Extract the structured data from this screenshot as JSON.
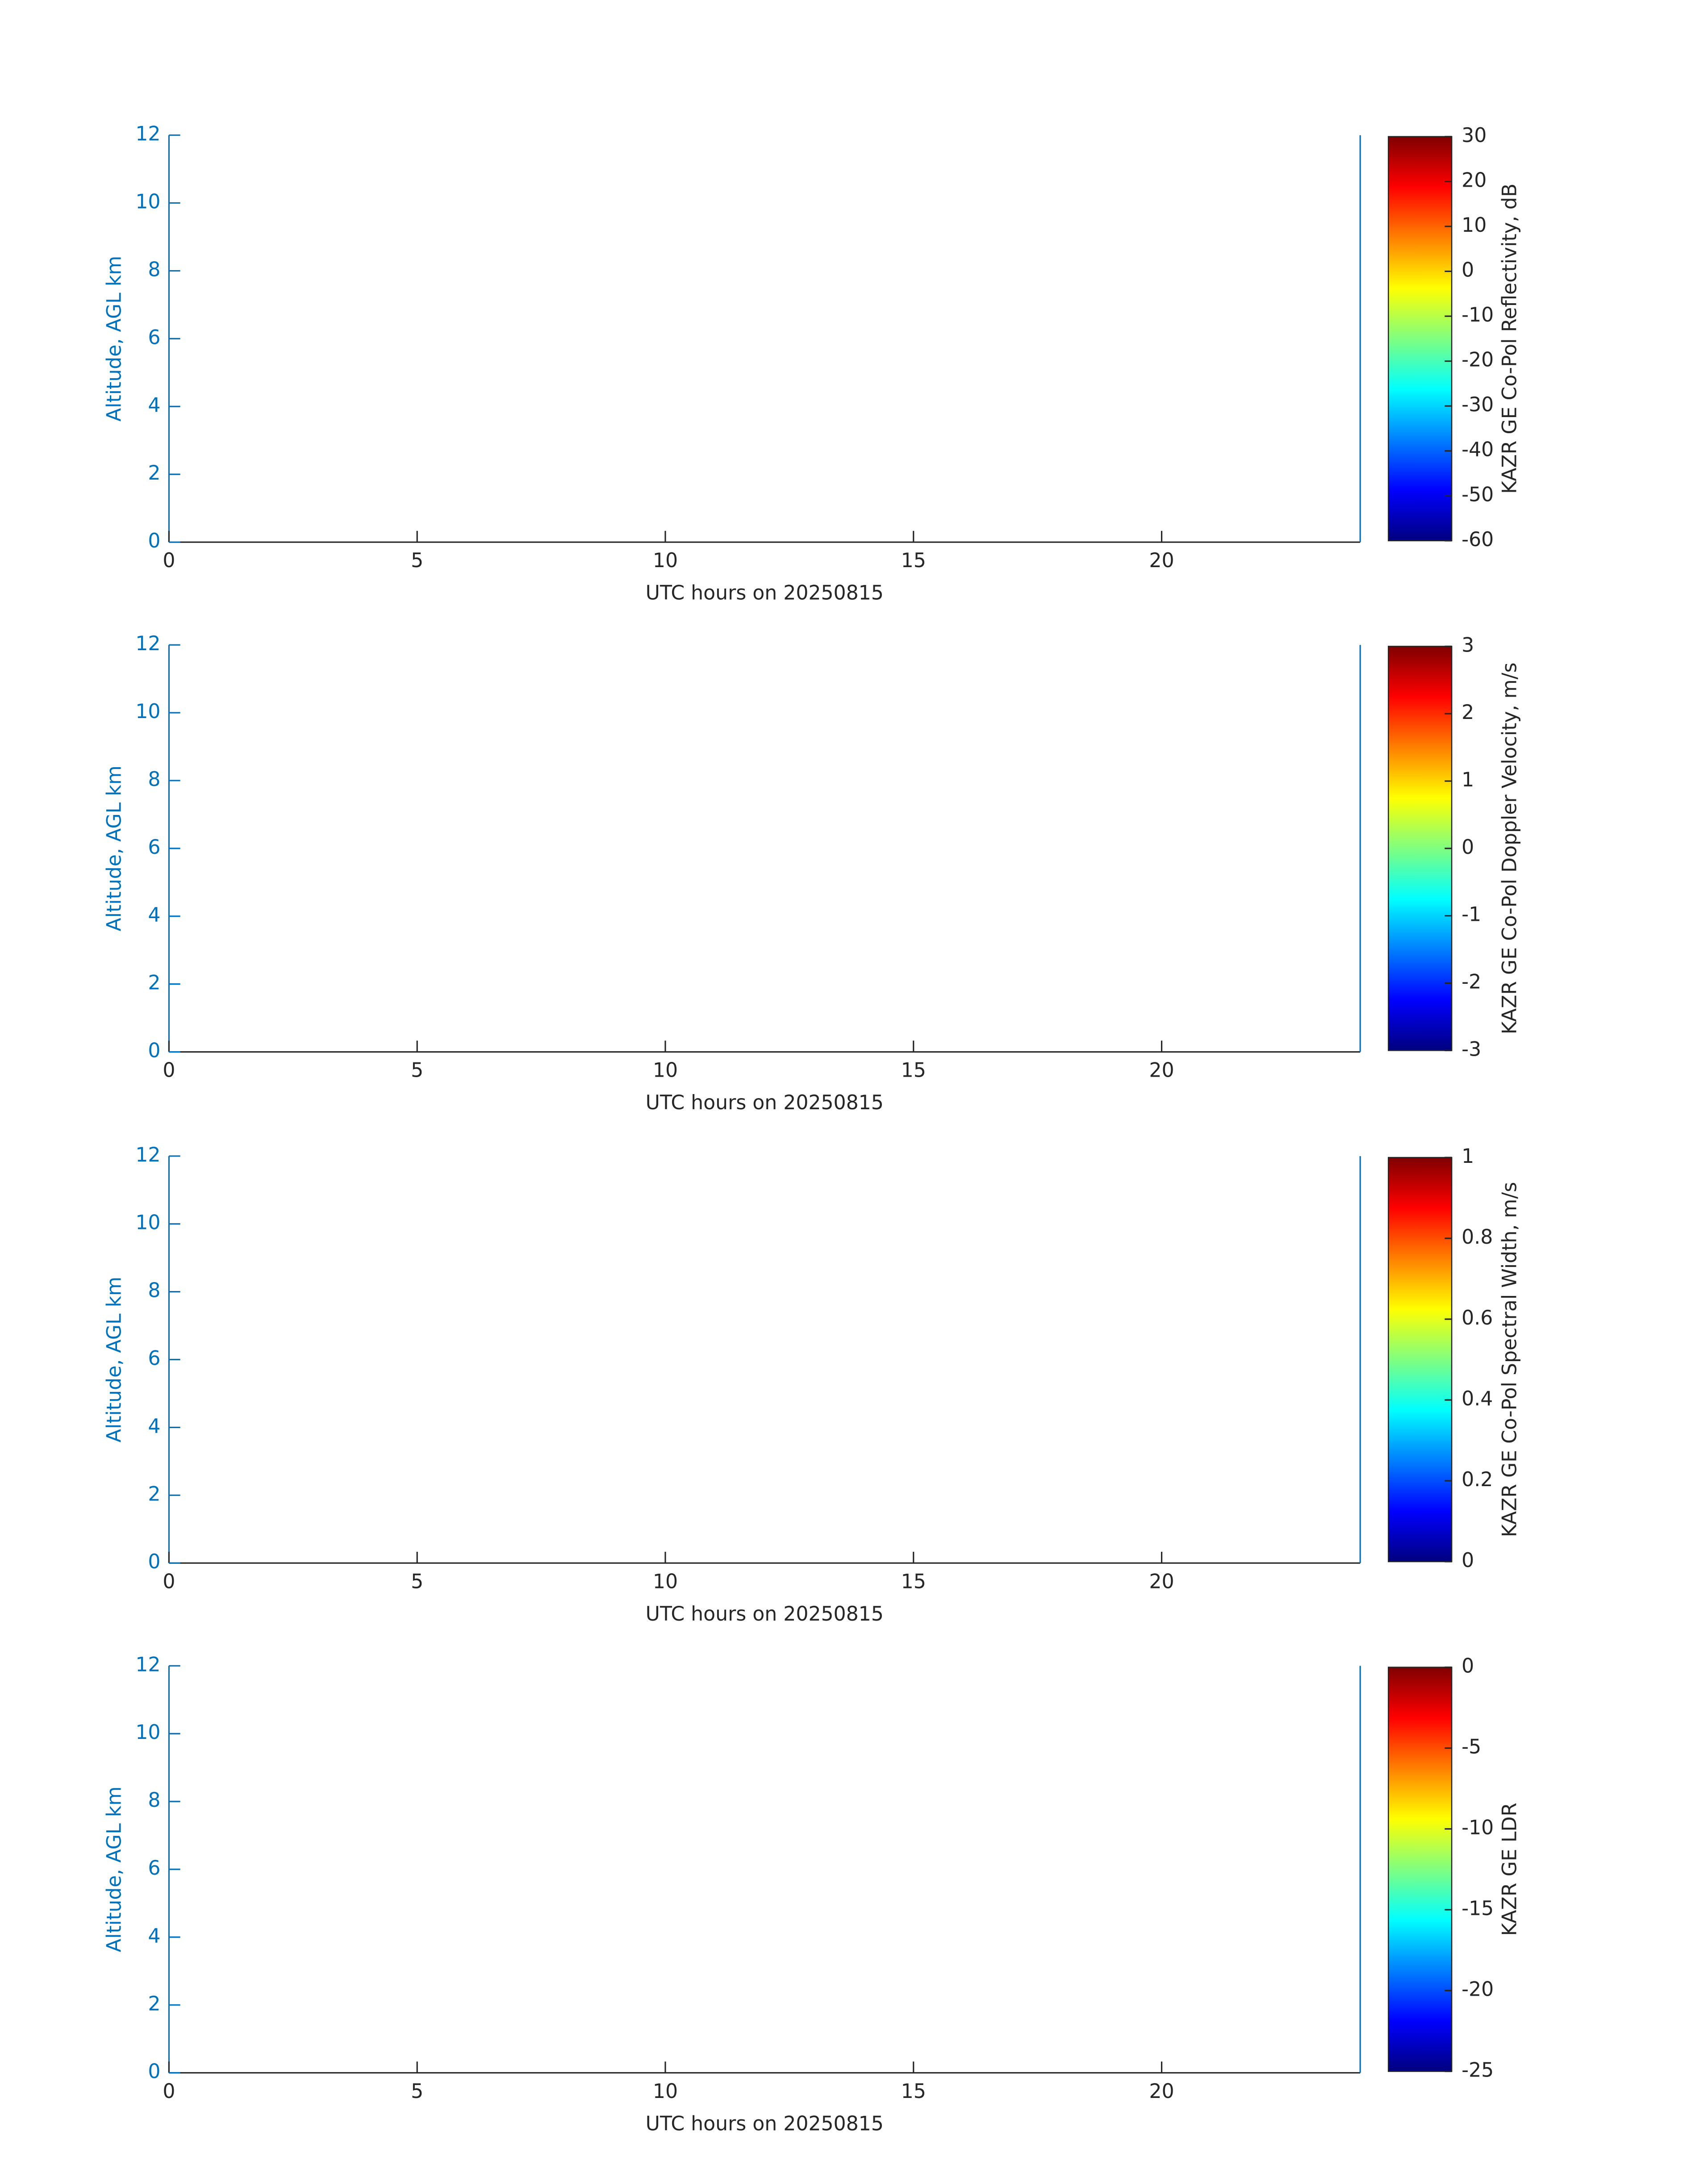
{
  "chart_data": [
    {
      "type": "heatmap",
      "xlabel": "UTC hours on 20250815",
      "ylabel": "Altitude, AGL km",
      "xlim": [
        0,
        24
      ],
      "xticks": [
        0,
        5,
        10,
        15,
        20
      ],
      "ylim": [
        0,
        12
      ],
      "yticks": [
        0,
        2,
        4,
        6,
        8,
        10,
        12
      ],
      "colorbar_label": "KAZR GE Co-Pol Reflectivity, dB",
      "clim": [
        -60,
        30
      ],
      "cticks": [
        -60,
        -50,
        -40,
        -30,
        -20,
        -10,
        0,
        10,
        20,
        30
      ],
      "colormap": "jet",
      "y_axis_color": "#0072bd"
    },
    {
      "type": "heatmap",
      "xlabel": "UTC hours on 20250815",
      "ylabel": "Altitude, AGL km",
      "xlim": [
        0,
        24
      ],
      "xticks": [
        0,
        5,
        10,
        15,
        20
      ],
      "ylim": [
        0,
        12
      ],
      "yticks": [
        0,
        2,
        4,
        6,
        8,
        10,
        12
      ],
      "colorbar_label": "KAZR GE Co-Pol Doppler Velocity, m/s",
      "clim": [
        -3,
        3
      ],
      "cticks": [
        -3,
        -2,
        -1,
        0,
        1,
        2,
        3
      ],
      "colormap": "jet",
      "y_axis_color": "#0072bd"
    },
    {
      "type": "heatmap",
      "xlabel": "UTC hours on 20250815",
      "ylabel": "Altitude, AGL km",
      "xlim": [
        0,
        24
      ],
      "xticks": [
        0,
        5,
        10,
        15,
        20
      ],
      "ylim": [
        0,
        12
      ],
      "yticks": [
        0,
        2,
        4,
        6,
        8,
        10,
        12
      ],
      "colorbar_label": "KAZR GE Co-Pol Spectral Width, m/s",
      "clim": [
        0,
        1
      ],
      "cticks": [
        0,
        0.2,
        0.4,
        0.6,
        0.8,
        1
      ],
      "colormap": "jet",
      "y_axis_color": "#0072bd"
    },
    {
      "type": "heatmap",
      "xlabel": "UTC hours on 20250815",
      "ylabel": "Altitude, AGL km",
      "xlim": [
        0,
        24
      ],
      "xticks": [
        0,
        5,
        10,
        15,
        20
      ],
      "ylim": [
        0,
        12
      ],
      "yticks": [
        0,
        2,
        4,
        6,
        8,
        10,
        12
      ],
      "colorbar_label": "KAZR GE LDR",
      "clim": [
        -25,
        0
      ],
      "cticks": [
        -25,
        -20,
        -15,
        -10,
        -5,
        0
      ],
      "colormap": "jet",
      "y_axis_color": "#0072bd"
    }
  ]
}
